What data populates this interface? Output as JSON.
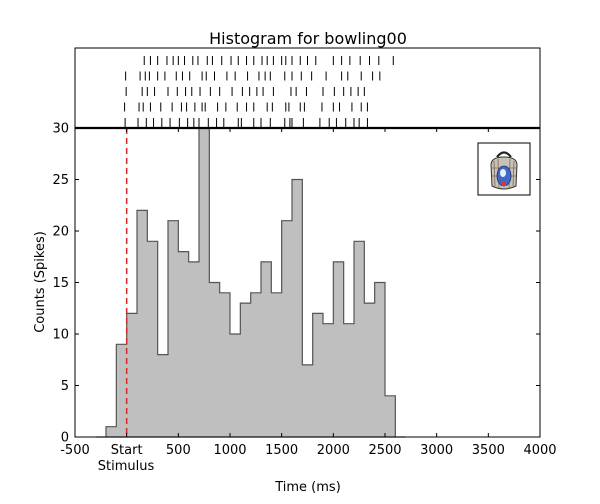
{
  "chart_data": {
    "type": "bar",
    "title": "Histogram for bowling00",
    "xlabel": "Time (ms)",
    "ylabel": "Counts (Spikes)",
    "xlim": [
      -500,
      4000
    ],
    "ylim": [
      0,
      30
    ],
    "bin_width": 100,
    "x_ticks": [
      -500,
      0,
      500,
      1000,
      1500,
      2000,
      2500,
      3000,
      3500,
      4000
    ],
    "x_tick_labels": [
      "-500",
      "Start",
      "500",
      "1000",
      "1500",
      "2000",
      "2500",
      "3000",
      "3500",
      "4000"
    ],
    "x_sublabel": "Stimulus",
    "y_ticks": [
      0,
      5,
      10,
      15,
      20,
      25,
      30
    ],
    "stimulus_onset": 0,
    "bins": [
      {
        "start": -300,
        "count": 0
      },
      {
        "start": -200,
        "count": 1
      },
      {
        "start": -100,
        "count": 9
      },
      {
        "start": 0,
        "count": 12
      },
      {
        "start": 100,
        "count": 22
      },
      {
        "start": 200,
        "count": 19
      },
      {
        "start": 300,
        "count": 8
      },
      {
        "start": 400,
        "count": 21
      },
      {
        "start": 500,
        "count": 18
      },
      {
        "start": 600,
        "count": 17
      },
      {
        "start": 700,
        "count": 30
      },
      {
        "start": 800,
        "count": 15
      },
      {
        "start": 900,
        "count": 14
      },
      {
        "start": 1000,
        "count": 10
      },
      {
        "start": 1100,
        "count": 13
      },
      {
        "start": 1200,
        "count": 14
      },
      {
        "start": 1300,
        "count": 17
      },
      {
        "start": 1400,
        "count": 14
      },
      {
        "start": 1500,
        "count": 21
      },
      {
        "start": 1600,
        "count": 25
      },
      {
        "start": 1700,
        "count": 7
      },
      {
        "start": 1800,
        "count": 12
      },
      {
        "start": 1900,
        "count": 11
      },
      {
        "start": 2000,
        "count": 17
      },
      {
        "start": 2100,
        "count": 11
      },
      {
        "start": 2200,
        "count": 19
      },
      {
        "start": 2300,
        "count": 13
      },
      {
        "start": 2400,
        "count": 15
      },
      {
        "start": 2500,
        "count": 4
      },
      {
        "start": 2600,
        "count": 0
      }
    ],
    "raster_trials": [
      [
        170,
        230,
        300,
        390,
        450,
        500,
        560,
        640,
        690,
        780,
        830,
        920,
        1010,
        1080,
        1160,
        1230,
        1310,
        1360,
        1420,
        1500,
        1540,
        1600,
        1680,
        1750,
        1830,
        2000,
        2080,
        2160,
        2260,
        2350,
        2440,
        2580
      ],
      [
        -10,
        130,
        180,
        220,
        300,
        370,
        480,
        540,
        610,
        730,
        770,
        850,
        970,
        1050,
        1170,
        1280,
        1340,
        1390,
        1530,
        1600,
        1690,
        1790,
        1930,
        2080,
        2140,
        2270,
        2380,
        2450
      ],
      [
        -5,
        150,
        200,
        270,
        400,
        490,
        570,
        630,
        710,
        810,
        900,
        1020,
        1120,
        1190,
        1260,
        1320,
        1420,
        1590,
        1640,
        1740,
        1900,
        2010,
        2100,
        2170,
        2240,
        2300
      ],
      [
        -20,
        120,
        160,
        230,
        330,
        440,
        530,
        580,
        660,
        730,
        760,
        880,
        960,
        1070,
        1160,
        1230,
        1360,
        1410,
        1540,
        1570,
        1680,
        1720,
        1890,
        2000,
        2060,
        2180,
        2270,
        2330
      ],
      [
        -15,
        110,
        190,
        260,
        340,
        420,
        510,
        590,
        650,
        700,
        790,
        870,
        940,
        1080,
        1110,
        1230,
        1300,
        1390,
        1530,
        1580,
        1600,
        1710,
        1870,
        1960,
        2030,
        2120,
        2200,
        2250,
        2330
      ]
    ],
    "grid": false,
    "legend": "none",
    "colors": {
      "bar_fill": "#bfbfbf",
      "bar_edge": "#555555",
      "stimulus_line": "#d62728",
      "axis": "#000000"
    },
    "inset_icon": "bowling-bag-icon",
    "inset_position": "top-right"
  }
}
